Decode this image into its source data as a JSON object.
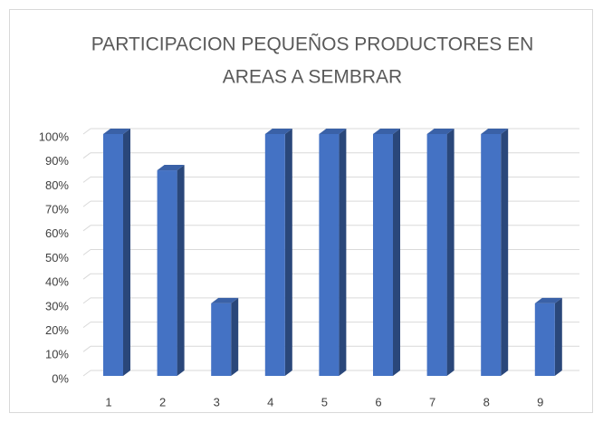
{
  "chart_data": {
    "type": "bar",
    "title": [
      "PARTICIPACION PEQUEÑOS PRODUCTORES EN",
      "AREAS A SEMBRAR"
    ],
    "categories": [
      "1",
      "2",
      "3",
      "4",
      "5",
      "6",
      "7",
      "8",
      "9"
    ],
    "values": [
      100,
      85,
      30,
      100,
      100,
      100,
      100,
      100,
      30
    ],
    "color": "#4472c4",
    "ylim": [
      0,
      100
    ],
    "yticks": [
      {
        "value": 0,
        "label": "0%"
      },
      {
        "value": 10,
        "label": "10%"
      },
      {
        "value": 20,
        "label": "20%"
      },
      {
        "value": 30,
        "label": "30%"
      },
      {
        "value": 40,
        "label": "40%"
      },
      {
        "value": 50,
        "label": "50%"
      },
      {
        "value": 60,
        "label": "60%"
      },
      {
        "value": 70,
        "label": "70%"
      },
      {
        "value": 80,
        "label": "80%"
      },
      {
        "value": 90,
        "label": "90%"
      },
      {
        "value": 100,
        "label": "100%"
      }
    ],
    "grid": true
  }
}
